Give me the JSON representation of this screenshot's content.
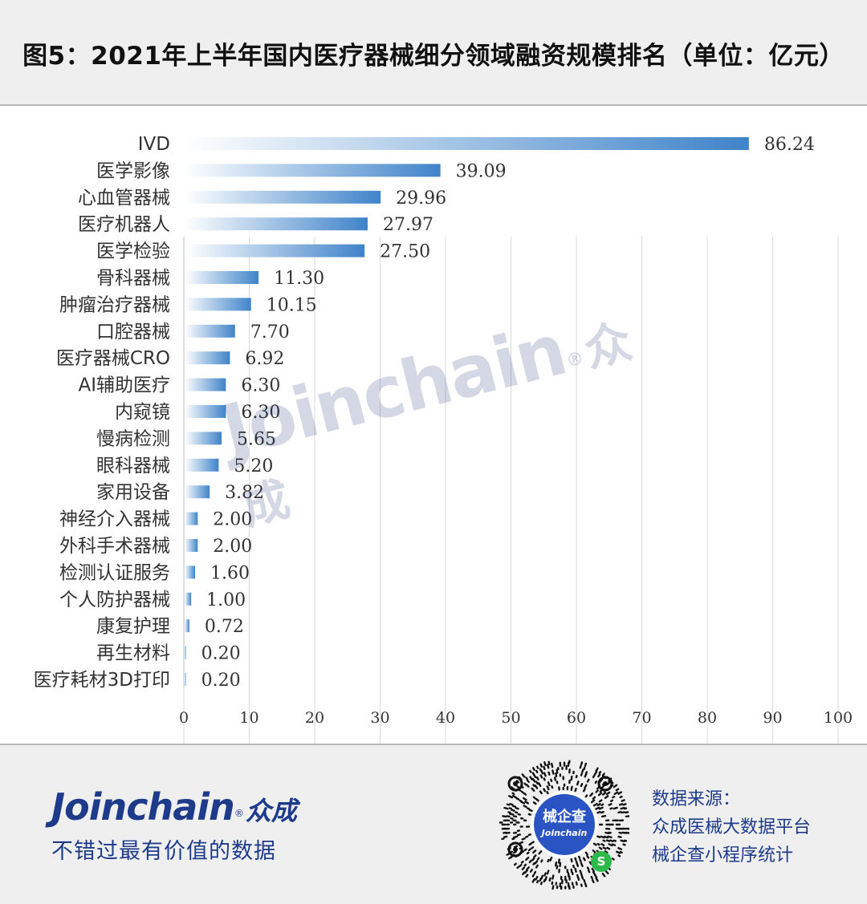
{
  "header": {
    "title": "图5：2021年上半年国内医疗器械细分领域融资规模排名（单位：亿元）"
  },
  "chart_data": {
    "type": "bar",
    "orientation": "horizontal",
    "categories": [
      "IVD",
      "医学影像",
      "心血管器械",
      "医疗机器人",
      "医学检验",
      "骨科器械",
      "肿瘤治疗器械",
      "口腔器械",
      "医疗器械CRO",
      "AI辅助医疗",
      "内窥镜",
      "慢病检测",
      "眼科器械",
      "家用设备",
      "神经介入器械",
      "外科手术器械",
      "检测认证服务",
      "个人防护器械",
      "康复护理",
      "再生材料",
      "医疗耗材3D打印"
    ],
    "values": [
      86.24,
      39.09,
      29.96,
      27.97,
      27.5,
      11.3,
      10.15,
      7.7,
      6.92,
      6.3,
      6.3,
      5.65,
      5.2,
      3.82,
      2.0,
      2.0,
      1.6,
      1.0,
      0.72,
      0.2,
      0.2
    ],
    "value_labels": [
      "86.24",
      "39.09",
      "29.96",
      "27.97",
      "27.50",
      "11.30",
      "10.15",
      "7.70",
      "6.92",
      "6.30",
      "6.30",
      "5.65",
      "5.20",
      "3.82",
      "2.00",
      "2.00",
      "1.60",
      "1.00",
      "0.72",
      "0.20",
      "0.20"
    ],
    "x_ticks": [
      "0",
      "10",
      "20",
      "30",
      "40",
      "50",
      "60",
      "70",
      "80",
      "90",
      "100"
    ],
    "xlim": [
      0,
      100
    ],
    "grid": "vertical",
    "bar_color": "#3f83c9",
    "bar_gradient_start": "#ffffff"
  },
  "watermark": {
    "text": "Joinchain",
    "registered": "®",
    "cn": "众成"
  },
  "footer": {
    "logo_text": "Joinchain",
    "logo_registered": "®",
    "logo_cn": "众成",
    "slogan": "不错过最有价值的数据",
    "qr_center_cn": "械企查",
    "qr_center_en": "Joinchain",
    "source_lines": [
      "数据来源：",
      "众成医械大数据平台",
      "械企查小程序统计"
    ],
    "brand_color": "#1d3b8a"
  }
}
